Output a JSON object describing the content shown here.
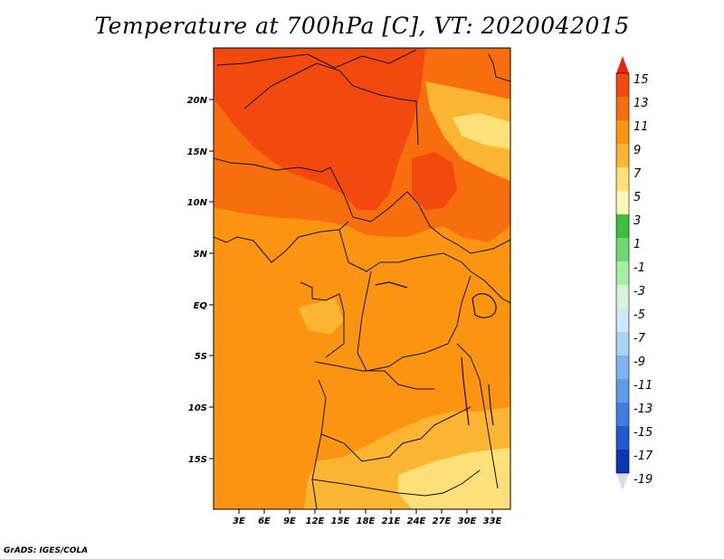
{
  "title": "Temperature at 700hPa [C], VT: 2020042015",
  "credit": "GrADS: IGES/COLA",
  "lat_labels": [
    "20N",
    "15N",
    "10N",
    "5N",
    "EQ",
    "5S",
    "10S",
    "15S"
  ],
  "lon_labels": [
    "3E",
    "6E",
    "9E",
    "12E",
    "15E",
    "18E",
    "21E",
    "24E",
    "27E",
    "30E",
    "33E"
  ],
  "colorbar": {
    "labels": [
      "15",
      "13",
      "11",
      "9",
      "7",
      "5",
      "3",
      "1",
      "-1",
      "-3",
      "-5",
      "-7",
      "-9",
      "-11",
      "-13",
      "-15",
      "-17",
      "-19"
    ],
    "colors": [
      "#e8260e",
      "#f24a0e",
      "#f76e0f",
      "#fb9410",
      "#fbb532",
      "#fde07a",
      "#fdf8b8",
      "#3cbf3c",
      "#6fd96f",
      "#a6eda6",
      "#d6f5d6",
      "#cfe6fb",
      "#a9d2f7",
      "#7fb5ef",
      "#5e9ce8",
      "#3d7ee0",
      "#1f5ad0",
      "#0e36b2",
      "#0c1470"
    ]
  },
  "field_colors": {
    "c13": "#f24a0e",
    "c11": "#f76e0f",
    "c9": "#fb9410",
    "c7": "#fbb532",
    "c5": "#fde07a"
  }
}
